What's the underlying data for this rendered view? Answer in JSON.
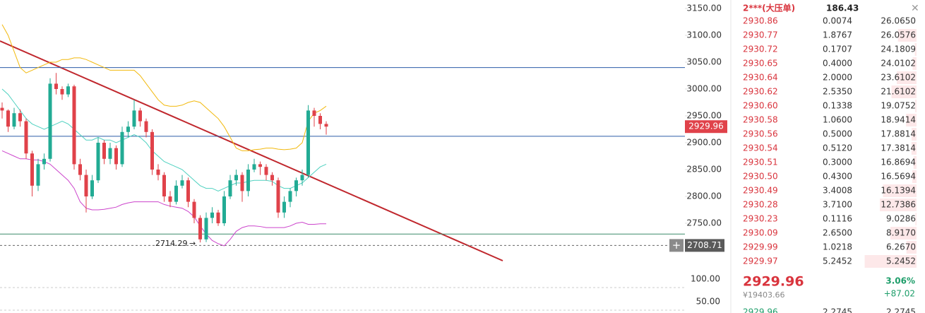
{
  "chart": {
    "yticks": [
      {
        "value": 3150,
        "label": "3150.00"
      },
      {
        "value": 3100,
        "label": "3100.00"
      },
      {
        "value": 3050,
        "label": "3050.00"
      },
      {
        "value": 3000,
        "label": "3000.00"
      },
      {
        "value": 2950,
        "label": "2950.00"
      },
      {
        "value": 2900,
        "label": "2900.00"
      },
      {
        "value": 2850,
        "label": "2850.00"
      },
      {
        "value": 2800,
        "label": "2800.00"
      },
      {
        "value": 2750,
        "label": "2750.00"
      }
    ],
    "sub_yticks": [
      {
        "value": 100,
        "label": "100.00"
      },
      {
        "value": 50,
        "label": "50.00"
      }
    ],
    "last_price": {
      "value": 2929.96,
      "label": "2929.96"
    },
    "cursor_price": {
      "value": 2708.71,
      "label": "2708.71"
    },
    "low_marker": {
      "value": 2714.29,
      "label": "2714.29"
    },
    "levels": [
      3040,
      2912,
      2730
    ],
    "colors": {
      "up": "#22ab94",
      "down": "#e0424a",
      "mid": "#4fd1c0",
      "upper": "#f2b90d",
      "lower": "#cc44cc"
    },
    "candles": [
      [
        2965,
        2975,
        2945,
        2960
      ],
      [
        2960,
        2962,
        2920,
        2930
      ],
      [
        2930,
        2965,
        2925,
        2955
      ],
      [
        2955,
        2962,
        2930,
        2940
      ],
      [
        2940,
        2945,
        2870,
        2880
      ],
      [
        2880,
        2885,
        2800,
        2820
      ],
      [
        2820,
        2870,
        2810,
        2860
      ],
      [
        2860,
        2880,
        2850,
        2870
      ],
      [
        2870,
        3020,
        2865,
        3010
      ],
      [
        3010,
        3030,
        2990,
        3000
      ],
      [
        3000,
        3005,
        2980,
        2990
      ],
      [
        2990,
        3010,
        2985,
        3005
      ],
      [
        3005,
        3008,
        2850,
        2860
      ],
      [
        2860,
        2870,
        2830,
        2840
      ],
      [
        2840,
        2850,
        2770,
        2800
      ],
      [
        2800,
        2840,
        2795,
        2830
      ],
      [
        2830,
        2910,
        2825,
        2900
      ],
      [
        2900,
        2905,
        2860,
        2870
      ],
      [
        2870,
        2900,
        2860,
        2890
      ],
      [
        2890,
        2895,
        2850,
        2860
      ],
      [
        2860,
        2930,
        2855,
        2920
      ],
      [
        2920,
        2940,
        2910,
        2930
      ],
      [
        2930,
        2980,
        2925,
        2960
      ],
      [
        2960,
        2965,
        2930,
        2940
      ],
      [
        2940,
        2945,
        2910,
        2920
      ],
      [
        2920,
        2925,
        2840,
        2850
      ],
      [
        2850,
        2860,
        2830,
        2840
      ],
      [
        2840,
        2845,
        2790,
        2800
      ],
      [
        2800,
        2810,
        2780,
        2790
      ],
      [
        2790,
        2830,
        2785,
        2820
      ],
      [
        2820,
        2840,
        2815,
        2830
      ],
      [
        2830,
        2835,
        2780,
        2790
      ],
      [
        2790,
        2795,
        2750,
        2760
      ],
      [
        2760,
        2765,
        2714.29,
        2720
      ],
      [
        2720,
        2770,
        2715,
        2760
      ],
      [
        2760,
        2780,
        2750,
        2770
      ],
      [
        2770,
        2775,
        2745,
        2750
      ],
      [
        2750,
        2810,
        2745,
        2800
      ],
      [
        2800,
        2840,
        2795,
        2830
      ],
      [
        2830,
        2850,
        2820,
        2840
      ],
      [
        2840,
        2845,
        2790,
        2810
      ],
      [
        2810,
        2860,
        2800,
        2850
      ],
      [
        2850,
        2870,
        2845,
        2860
      ],
      [
        2860,
        2865,
        2840,
        2855
      ],
      [
        2855,
        2860,
        2830,
        2840
      ],
      [
        2840,
        2845,
        2820,
        2830
      ],
      [
        2830,
        2835,
        2760,
        2770
      ],
      [
        2770,
        2800,
        2760,
        2790
      ],
      [
        2790,
        2815,
        2780,
        2810
      ],
      [
        2810,
        2835,
        2800,
        2830
      ],
      [
        2830,
        2850,
        2820,
        2840
      ],
      [
        2840,
        2970,
        2835,
        2960
      ],
      [
        2960,
        2965,
        2930,
        2950
      ],
      [
        2950,
        2955,
        2925,
        2935
      ],
      [
        2935,
        2940,
        2915,
        2930
      ]
    ],
    "mid": [
      3000,
      2990,
      2975,
      2960,
      2945,
      2935,
      2930,
      2925,
      2930,
      2935,
      2940,
      2935,
      2925,
      2915,
      2905,
      2905,
      2910,
      2905,
      2905,
      2900,
      2905,
      2910,
      2915,
      2910,
      2900,
      2885,
      2875,
      2865,
      2860,
      2855,
      2850,
      2840,
      2830,
      2820,
      2815,
      2815,
      2810,
      2815,
      2820,
      2825,
      2825,
      2828,
      2830,
      2830,
      2830,
      2828,
      2820,
      2815,
      2815,
      2820,
      2825,
      2835,
      2845,
      2855,
      2860
    ],
    "upper": [
      3120,
      3100,
      3070,
      3040,
      3030,
      3035,
      3040,
      3045,
      3050,
      3050,
      3055,
      3055,
      3058,
      3058,
      3055,
      3050,
      3045,
      3040,
      3035,
      3035,
      3035,
      3035,
      3035,
      3025,
      3010,
      2995,
      2980,
      2970,
      2968,
      2968,
      2970,
      2975,
      2978,
      2975,
      2965,
      2955,
      2945,
      2930,
      2910,
      2890,
      2885,
      2885,
      2887,
      2888,
      2890,
      2890,
      2888,
      2887,
      2888,
      2890,
      2900,
      2940,
      2955,
      2960,
      2968
    ],
    "lower": [
      2885,
      2880,
      2875,
      2870,
      2870,
      2868,
      2868,
      2865,
      2860,
      2850,
      2840,
      2830,
      2815,
      2790,
      2778,
      2775,
      2775,
      2776,
      2778,
      2780,
      2785,
      2788,
      2790,
      2790,
      2790,
      2790,
      2790,
      2785,
      2782,
      2780,
      2778,
      2772,
      2762,
      2745,
      2730,
      2718,
      2712,
      2708,
      2720,
      2735,
      2742,
      2745,
      2745,
      2744,
      2742,
      2742,
      2742,
      2742,
      2745,
      2750,
      2752,
      2748,
      2748,
      2749,
      2749
    ]
  },
  "book": {
    "header": {
      "name": "2***(大压单)",
      "value": "186.43"
    },
    "rows": [
      [
        "2930.86",
        "0.0074",
        "26.0650"
      ],
      [
        "2930.77",
        "1.8767",
        "26.0576"
      ],
      [
        "2930.72",
        "0.1707",
        "24.1809"
      ],
      [
        "2930.65",
        "0.4000",
        "24.0102"
      ],
      [
        "2930.64",
        "2.0000",
        "23.6102"
      ],
      [
        "2930.62",
        "2.5350",
        "21.6102"
      ],
      [
        "2930.60",
        "0.1338",
        "19.0752"
      ],
      [
        "2930.58",
        "1.0600",
        "18.9414"
      ],
      [
        "2930.56",
        "0.5000",
        "17.8814"
      ],
      [
        "2930.54",
        "0.5120",
        "17.3814"
      ],
      [
        "2930.51",
        "0.3000",
        "16.8694"
      ],
      [
        "2930.50",
        "0.4300",
        "16.5694"
      ],
      [
        "2930.49",
        "3.4008",
        "16.1394"
      ],
      [
        "2930.28",
        "3.7100",
        "12.7386"
      ],
      [
        "2930.23",
        "0.1116",
        "9.0286"
      ],
      [
        "2930.09",
        "2.6500",
        "8.9170"
      ],
      [
        "2929.99",
        "1.0218",
        "6.2670"
      ],
      [
        "2929.97",
        "5.2452",
        "5.2452"
      ]
    ],
    "last": {
      "price": "2929.96",
      "cny": "¥19403.66",
      "change_pct": "3.06%",
      "change": "+87.02"
    },
    "next_row": [
      "2929.96",
      "2.2745",
      "2.2745"
    ]
  }
}
